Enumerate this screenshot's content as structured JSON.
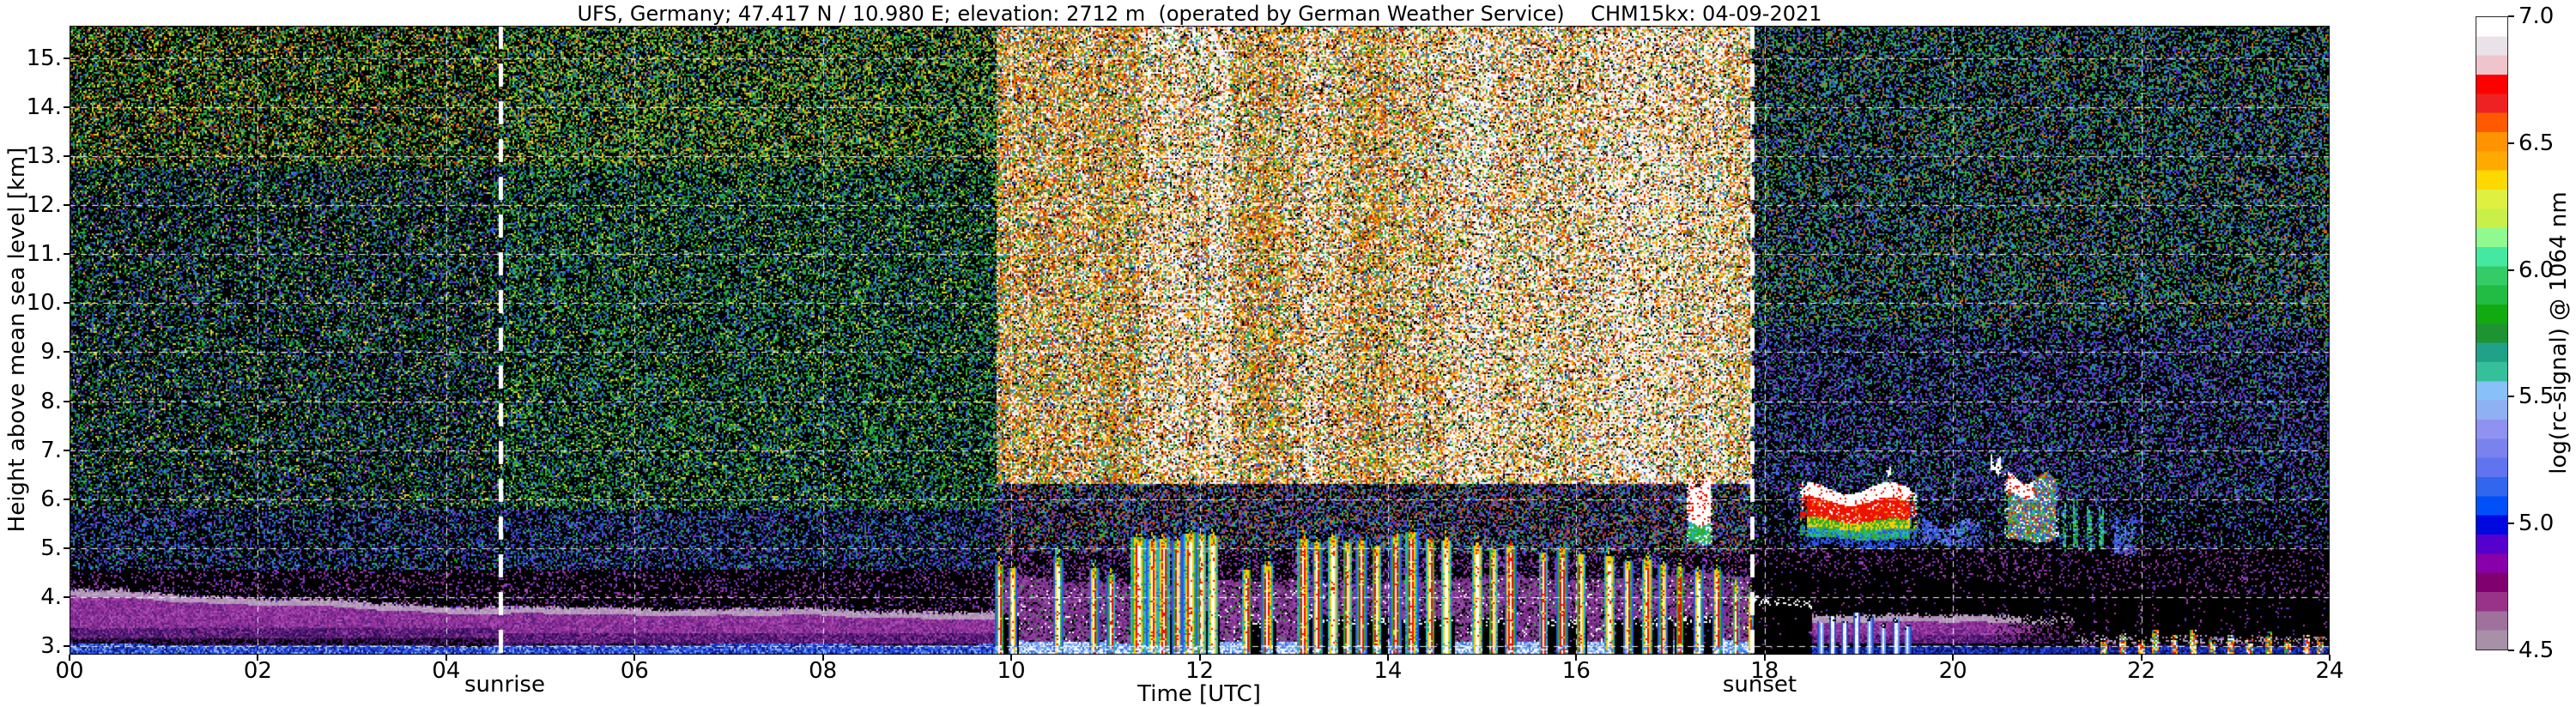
{
  "title": "UFS, Germany; 47.417 N / 10.980 E; elevation: 2712 m  (operated by German Weather Service)    CHM15kx: 04-09-2021",
  "chart_data": {
    "type": "heatmap",
    "title": "UFS, Germany; 47.417 N / 10.980 E; elevation: 2712 m  (operated by German Weather Service)    CHM15kx: 04-09-2021",
    "station": "UFS, Germany",
    "latitude": "47.417 N",
    "longitude": "10.980 E",
    "elevation": "2712 m",
    "operator": "German Weather Service",
    "instrument": "CHM15kx",
    "date": "04-09-2021",
    "xlabel": "Time [UTC]",
    "ylabel": "Height above mean sea level [km]",
    "colorbar_label": "log(rc-signal) @ 1064 nm",
    "x_range_hours": [
      0,
      24
    ],
    "x_ticks": [
      "00",
      "02",
      "04",
      "06",
      "08",
      "10",
      "12",
      "14",
      "16",
      "18",
      "20",
      "22",
      "24"
    ],
    "x_tick_hours": [
      0,
      2,
      4,
      6,
      8,
      10,
      12,
      14,
      16,
      18,
      20,
      22,
      24
    ],
    "y_range_km": [
      2.82,
      15.67
    ],
    "y_ticks": [
      "15.",
      "14.",
      "13.",
      "12.",
      "11.",
      "10.",
      "9.",
      "8.",
      "7.",
      "6.",
      "5.",
      "4.",
      "3."
    ],
    "y_tick_km": [
      15,
      14,
      13,
      12,
      11,
      10,
      9,
      8,
      7,
      6,
      5,
      4,
      3
    ],
    "grid": {
      "horizontal_km": [
        3,
        4,
        5,
        6,
        7,
        8,
        9,
        10,
        11,
        12,
        13,
        14,
        15
      ],
      "vertical_hours": [
        2,
        4,
        6,
        8,
        10,
        12,
        14,
        16,
        18,
        20,
        22
      ],
      "style": "white dashed"
    },
    "colorbar_range": [
      4.5,
      7.0
    ],
    "colorbar_ticks": [
      "7.0",
      "6.5",
      "6.0",
      "5.5",
      "5.0",
      "4.5"
    ],
    "colorbar_tick_values": [
      7.0,
      6.5,
      6.0,
      5.5,
      5.0,
      4.5
    ],
    "colorbar_colors_bottom_to_top": [
      "#a890a8",
      "#a0719d",
      "#993388",
      "#800070",
      "#8800aa",
      "#5500cc",
      "#0008e0",
      "#0050fa",
      "#3366ee",
      "#5f74ee",
      "#7a82ee",
      "#8f92f0",
      "#90b0f4",
      "#88c0f8",
      "#35c09b",
      "#21a188",
      "#1d9431",
      "#11aa11",
      "#22bb44",
      "#33cc66",
      "#44e8a0",
      "#90fa90",
      "#c8f048",
      "#e0f040",
      "#ffd800",
      "#ffaa00",
      "#ff9400",
      "#ff5a00",
      "#ee2222",
      "#ff0000",
      "#f0c4cc",
      "#eae2e8",
      "#ffffff"
    ],
    "annotations": [
      {
        "label": "sunrise",
        "time_utc": 4.58
      },
      {
        "label": "sunset",
        "time_utc": 17.87
      }
    ],
    "notable_features": [
      {
        "label": "nocturnal boundary-layer aerosol band",
        "time_utc": [
          0,
          9.85
        ],
        "height_km": [
          3.0,
          4.2
        ]
      },
      {
        "label": "low-level bright signal band (lowest range gates)",
        "time_utc": [
          0,
          24
        ],
        "height_km": [
          2.82,
          3.1
        ]
      },
      {
        "label": "convective plumes with cloud-top attenuation (black)",
        "time_utc": [
          9.85,
          17.9
        ],
        "height_km": [
          2.8,
          5.5
        ]
      },
      {
        "label": "small cloud before sunset",
        "time_utc": [
          17.2,
          17.45
        ],
        "height_km": [
          5.1,
          6.35
        ]
      },
      {
        "label": "elevated cloud / aerosol layer",
        "time_utc": [
          18.35,
          21.95
        ],
        "height_km": [
          4.85,
          6.45
        ]
      },
      {
        "label": "attenuated dark region below evening layer",
        "time_utc": [
          17.9,
          24
        ],
        "height_km": [
          2.8,
          4.6
        ]
      },
      {
        "label": "solar background noise (bright speckle) during daytime",
        "time_utc": [
          9.85,
          17.87
        ],
        "height_km": [
          4.5,
          15.67
        ]
      }
    ],
    "render": {
      "day_start": 9.85,
      "whiteness_step_h": 0.25,
      "whiteness": [
        0.18,
        0.22,
        0.28,
        0.32,
        0.25,
        0.3,
        0.55,
        0.6,
        0.45,
        0.6,
        0.3,
        0.25,
        0.35,
        0.55,
        0.45,
        0.35,
        0.3,
        0.45,
        0.4,
        0.5,
        0.55,
        0.4,
        0.45,
        0.5,
        0.45,
        0.5,
        0.6,
        0.55,
        0.5,
        0.35,
        0.45,
        0.35,
        0.3
      ],
      "plumes": [
        [
          9.88,
          0.045,
          4.6
        ],
        [
          10.02,
          0.04,
          4.5
        ],
        [
          10.5,
          0.05,
          4.8
        ],
        [
          10.88,
          0.05,
          4.6
        ],
        [
          11.06,
          0.04,
          4.5
        ],
        [
          11.35,
          0.09,
          5.3
        ],
        [
          11.5,
          0.06,
          5.25
        ],
        [
          11.62,
          0.07,
          5.3
        ],
        [
          11.76,
          0.05,
          5.2
        ],
        [
          11.9,
          0.08,
          5.35
        ],
        [
          12.02,
          0.05,
          5.3
        ],
        [
          12.14,
          0.06,
          5.25
        ],
        [
          12.5,
          0.05,
          4.6
        ],
        [
          12.72,
          0.06,
          4.7
        ],
        [
          13.1,
          0.07,
          5.2
        ],
        [
          13.25,
          0.05,
          5.15
        ],
        [
          13.42,
          0.06,
          5.3
        ],
        [
          13.57,
          0.05,
          5.2
        ],
        [
          13.72,
          0.06,
          5.25
        ],
        [
          13.88,
          0.05,
          5.1
        ],
        [
          14.08,
          0.06,
          5.3
        ],
        [
          14.25,
          0.07,
          5.35
        ],
        [
          14.45,
          0.05,
          5.2
        ],
        [
          14.62,
          0.06,
          5.15
        ],
        [
          14.95,
          0.06,
          5.0
        ],
        [
          15.12,
          0.05,
          4.9
        ],
        [
          15.3,
          0.06,
          5.0
        ],
        [
          15.65,
          0.05,
          4.9
        ],
        [
          15.85,
          0.06,
          5.0
        ],
        [
          16.05,
          0.05,
          4.85
        ],
        [
          16.35,
          0.06,
          4.8
        ],
        [
          16.55,
          0.05,
          4.7
        ],
        [
          16.75,
          0.06,
          4.75
        ],
        [
          16.92,
          0.05,
          4.6
        ],
        [
          17.1,
          0.04,
          4.5
        ],
        [
          17.3,
          0.05,
          4.4
        ],
        [
          17.5,
          0.05,
          4.45
        ],
        [
          17.7,
          0.04,
          4.2
        ],
        [
          17.85,
          0.03,
          4.0
        ]
      ],
      "attenuation_blobs": [
        [
          9.82,
          10.08,
          3.55
        ],
        [
          11.28,
          12.22,
          3.75
        ],
        [
          12.45,
          12.82,
          3.55
        ],
        [
          13.05,
          14.0,
          3.7
        ],
        [
          14.05,
          14.72,
          3.6
        ],
        [
          14.9,
          15.36,
          3.5
        ],
        [
          15.6,
          16.12,
          3.55
        ],
        [
          16.3,
          17.02,
          3.5
        ],
        [
          17.05,
          17.56,
          3.45
        ],
        [
          17.88,
          18.5,
          3.95
        ]
      ],
      "clouds": [
        {
          "t0": 17.18,
          "t1": 17.45,
          "hb": 5.1,
          "ht": 6.35,
          "style": "cumulus"
        },
        {
          "t0": 18.38,
          "t1": 19.62,
          "hb": 5.02,
          "ht": 6.22,
          "style": "layer"
        },
        {
          "t0": 19.62,
          "t1": 20.35,
          "hb": 5.05,
          "ht": 5.5,
          "style": "blue"
        },
        {
          "t0": 20.55,
          "t1": 21.12,
          "hb": 5.15,
          "ht": 6.42,
          "style": "mixed"
        },
        {
          "t0": 21.16,
          "t1": 21.21,
          "hb": 4.95,
          "ht": 5.85,
          "style": "streak"
        },
        {
          "t0": 21.28,
          "t1": 21.33,
          "hb": 5.0,
          "ht": 5.9,
          "style": "streak"
        },
        {
          "t0": 21.42,
          "t1": 21.47,
          "hb": 4.95,
          "ht": 5.8,
          "style": "streak"
        },
        {
          "t0": 21.55,
          "t1": 21.6,
          "hb": 5.0,
          "ht": 5.75,
          "style": "streak"
        },
        {
          "t0": 21.7,
          "t1": 21.97,
          "hb": 4.85,
          "ht": 5.55,
          "style": "blue"
        },
        {
          "t0": 20.4,
          "t1": 20.52,
          "hb": 6.55,
          "ht": 6.78,
          "style": "white"
        },
        {
          "t0": 19.28,
          "t1": 19.34,
          "hb": 6.5,
          "ht": 6.62,
          "style": "white"
        }
      ],
      "spikes": [
        [
          17.95,
          3.45,
          2
        ],
        [
          18.05,
          3.6,
          2
        ],
        [
          18.17,
          3.5,
          2
        ],
        [
          18.3,
          3.55,
          2
        ],
        [
          18.42,
          3.4,
          2
        ],
        [
          18.6,
          3.5,
          0
        ],
        [
          18.72,
          3.65,
          0
        ],
        [
          18.85,
          3.55,
          0
        ],
        [
          18.98,
          3.7,
          0
        ],
        [
          19.12,
          3.6,
          0
        ],
        [
          19.26,
          3.45,
          0
        ],
        [
          19.4,
          3.55,
          0
        ],
        [
          19.52,
          3.4,
          0
        ],
        [
          21.6,
          3.2,
          1
        ],
        [
          21.8,
          3.3,
          1
        ],
        [
          22.0,
          3.15,
          1
        ],
        [
          22.15,
          3.35,
          1
        ],
        [
          22.35,
          3.2,
          1
        ],
        [
          22.55,
          3.3,
          1
        ],
        [
          22.75,
          3.15,
          1
        ],
        [
          22.95,
          3.25,
          1
        ],
        [
          23.15,
          3.2,
          1
        ],
        [
          23.35,
          3.3,
          1
        ],
        [
          23.55,
          3.15,
          1
        ],
        [
          23.75,
          3.25,
          1
        ],
        [
          23.9,
          3.2,
          1
        ]
      ],
      "plume_rings": [
        "#ffffff",
        "#ee1100",
        "#ffcc00",
        "#2fae2f",
        "#22b8c8",
        "#2a55ee"
      ],
      "palettes": {
        "night_top": [
          "#d8d820",
          "#d8d820",
          "#cc6a11",
          "#1f9e1f",
          "#1f9e1f",
          "#2fae2f",
          "#27aaa0",
          "#2a4ccc",
          "#bb2a11",
          "#0c6e0c"
        ],
        "night_mid": [
          "#1f9e1f",
          "#2fae2f",
          "#0c6e0c",
          "#0c6e0c",
          "#d8d820",
          "#27aaa0",
          "#2a4ccc",
          "#2a4ccc",
          "#3a66ee",
          "#8833aa"
        ],
        "night_low": [
          "#2a4ccc",
          "#3a66ee",
          "#1133aa",
          "#27aaa0",
          "#1f9e1f",
          "#8833aa",
          "#5533cc"
        ],
        "morning_top": [
          "#d8d820",
          "#b8c818",
          "#1f9e1f",
          "#2fae2f",
          "#2fae2f",
          "#27aaa0",
          "#cc6a11",
          "#2a4ccc"
        ],
        "morning_mid": [
          "#1f9e1f",
          "#2fae2f",
          "#2fae2f",
          "#0c6e0c",
          "#27aaa0",
          "#d8d820",
          "#2a4ccc",
          "#3a66ee"
        ],
        "morning_low": [
          "#3a66ee",
          "#2a4ccc",
          "#2a4ccc",
          "#5533cc",
          "#27aaa0",
          "#1f9e1f",
          "#8833aa",
          "#1133aa"
        ],
        "day_bright": [
          "#ff7f00",
          "#ff7f00",
          "#e84a11",
          "#cc3311",
          "#bb2a11",
          "#ffc400",
          "#2fae2f",
          "#1f9e1f",
          "#27aaa0",
          "#3a66ee",
          "#d8d820",
          "#ff9900"
        ],
        "day_white": [
          "#ffffff",
          "#ffffff",
          "#f2eaea",
          "#e8e0e0"
        ],
        "day_mid": [
          "#5533cc",
          "#3a66ee",
          "#8833aa",
          "#2fae2f",
          "#cc6a11",
          "#27aaa0",
          "#2a4ccc",
          "#bb2a11"
        ],
        "evening_top": [
          "#2fae5f",
          "#27aaa0",
          "#2a4ccc",
          "#1f9e1f",
          "#3a66ee",
          "#2fae2f",
          "#cc6a11",
          "#5533cc"
        ],
        "evening_mid": [
          "#2a4ccc",
          "#3a66ee",
          "#27aaa0",
          "#1f9e1f",
          "#5533cc",
          "#5533cc",
          "#8833aa"
        ],
        "purple_sparse": [
          "#8833aa",
          "#aa44bb",
          "#5533cc",
          "#993399"
        ],
        "blue_band_day": [
          "#86b8f6",
          "#86b8f6",
          "#cfe4fb",
          "#3c72e8",
          "#ffffff",
          "#5d8cf0"
        ],
        "blue_band_night": [
          "#1c39d6",
          "#2a55ee",
          "#2a55ee",
          "#4f86f0",
          "#0f1d9c",
          "#8fb6f4",
          "#101470"
        ],
        "blue_band_evening": [
          "#12249a",
          "#1c39d6",
          "#0c1670",
          "#2a55ee",
          "#060c46"
        ],
        "purple_band": [
          "#93309b",
          "#93309b",
          "#ad52b5",
          "#7a2585",
          "#9b3ba3",
          "#5a2080"
        ],
        "purple_band_top": [
          "#b297b8",
          "#a98cb3",
          "#c0a9c4"
        ],
        "purple_band_dark": [
          "#4a1570",
          "#3a1060",
          "#551f7a",
          "#2a0a50"
        ],
        "bottom_strip": [
          "#000000",
          "#000000",
          "#4a0808",
          "#2a0303"
        ],
        "haze": [
          "#7a2f8a",
          "#9a4aaa",
          "#6a2578",
          "#8a3a9a"
        ],
        "spike_mix": [
          "#ee1100",
          "#ff7f00",
          "#2fae2f",
          "#2a55ee",
          "#ffffff",
          "#ffcc00"
        ]
      }
    }
  }
}
